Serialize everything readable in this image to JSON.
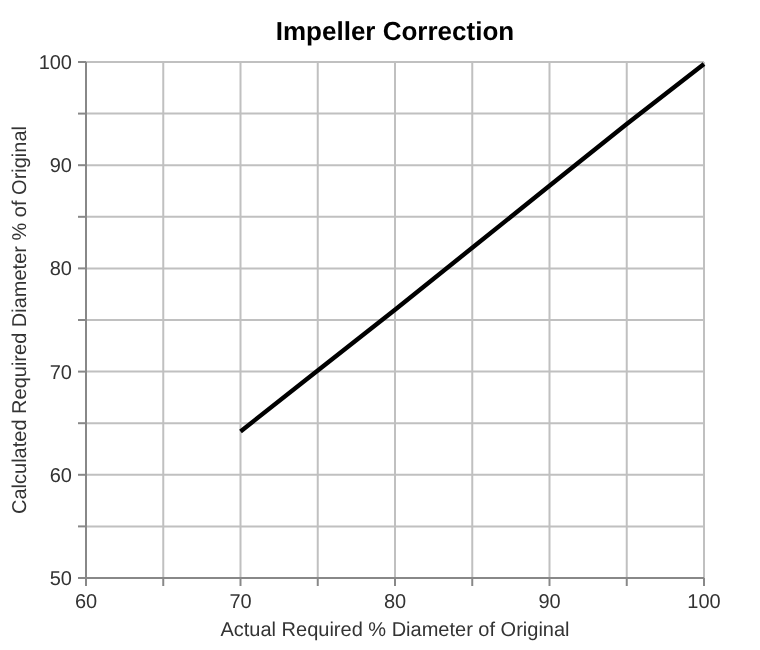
{
  "chart_data": {
    "type": "line",
    "title": "Impeller Correction",
    "xlabel": "Actual Required % Diameter of Original",
    "ylabel": "Calculated Required Diameter % of Original",
    "x": [
      70,
      75,
      80,
      85,
      90,
      95,
      100
    ],
    "series": [
      {
        "color": "#000000",
        "values": [
          64.2,
          70.1,
          76,
          82,
          88,
          94,
          99.8
        ]
      }
    ],
    "xlim": [
      60,
      100
    ],
    "xticks": [
      60,
      {
        "value": 65,
        "label": null
      },
      70,
      {
        "value": 75,
        "label": null
      },
      80,
      {
        "value": 85,
        "label": null
      },
      90,
      {
        "value": 95,
        "label": null
      },
      100
    ],
    "ylim": [
      50,
      100
    ],
    "yticks": [
      50,
      {
        "value": 55,
        "label": null
      },
      60,
      {
        "value": 65,
        "label": null
      },
      70,
      {
        "value": 75,
        "label": null
      },
      80,
      {
        "value": 85,
        "label": null
      },
      90,
      {
        "value": 95,
        "label": null
      },
      100
    ],
    "grid": true,
    "marker": "none",
    "line_style": "solid"
  }
}
